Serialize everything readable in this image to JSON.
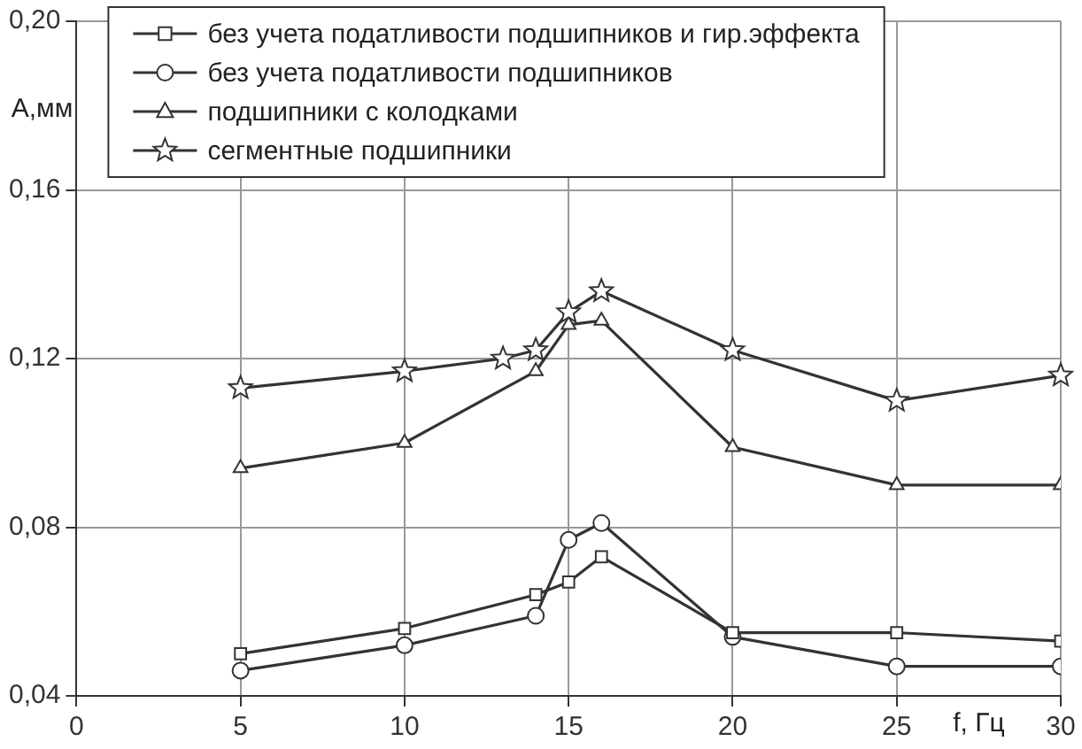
{
  "chart_data": {
    "type": "line",
    "xlabel": "f, Гц",
    "ylabel": "A,мм",
    "xlim": [
      0,
      30
    ],
    "xticks": [
      0,
      5,
      10,
      15,
      20,
      25,
      30
    ],
    "ylim": [
      0.04,
      0.2
    ],
    "yticks": [
      {
        "value": 0.04,
        "label": "0,04"
      },
      {
        "value": 0.08,
        "label": "0,08"
      },
      {
        "value": 0.12,
        "label": "0,12"
      },
      {
        "value": 0.16,
        "label": "0,16"
      },
      {
        "value": 0.2,
        "label": "0,20"
      }
    ],
    "grid": true,
    "legend": "top",
    "line_style": "solid",
    "series": [
      {
        "name": "без учета податливости подшипников и гир.эффекта",
        "color": "#333333",
        "marker": "square",
        "x": [
          5,
          10,
          14,
          15,
          16,
          20,
          25,
          30
        ],
        "values": [
          0.05,
          0.056,
          0.064,
          0.067,
          0.073,
          0.055,
          0.055,
          0.053
        ]
      },
      {
        "name": "без учета податливости подшипников",
        "color": "#333333",
        "marker": "circle",
        "x": [
          5,
          10,
          14,
          15,
          16,
          20,
          25,
          30
        ],
        "values": [
          0.046,
          0.052,
          0.059,
          0.077,
          0.081,
          0.054,
          0.047,
          0.047
        ]
      },
      {
        "name": "подшипники с колодками",
        "color": "#333333",
        "marker": "triangle",
        "x": [
          5,
          10,
          14,
          15,
          16,
          20,
          25,
          30
        ],
        "values": [
          0.094,
          0.1,
          0.117,
          0.128,
          0.129,
          0.099,
          0.09,
          0.09
        ]
      },
      {
        "name": "сегментные подшипники",
        "color": "#333333",
        "marker": "star",
        "x": [
          5,
          10,
          13,
          14,
          15,
          16,
          20,
          25,
          30
        ],
        "values": [
          0.113,
          0.117,
          0.12,
          0.122,
          0.131,
          0.136,
          0.122,
          0.11,
          0.116
        ]
      }
    ]
  }
}
